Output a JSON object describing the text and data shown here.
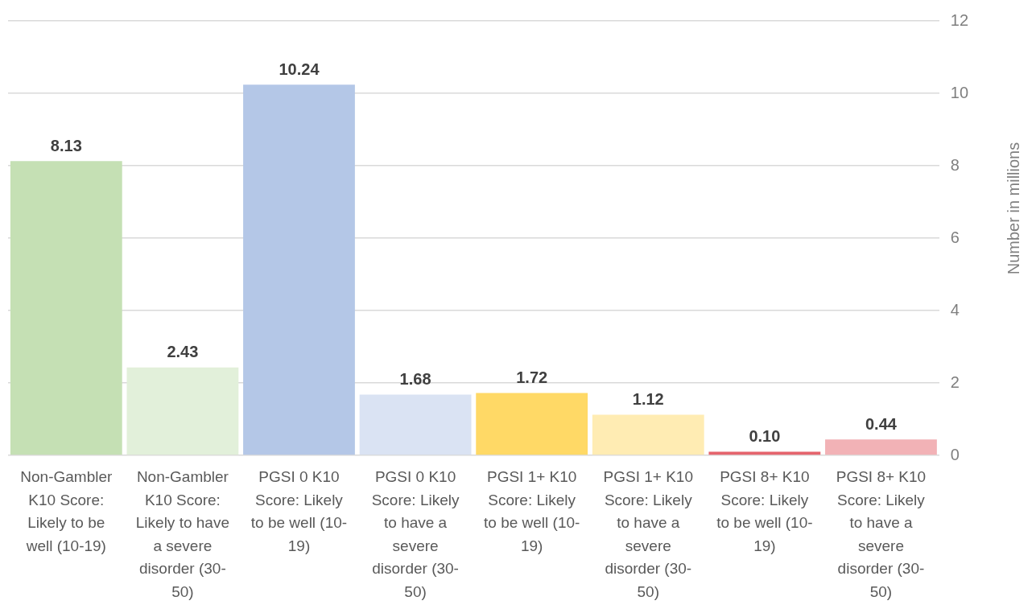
{
  "chart_data": {
    "type": "bar",
    "categories": [
      "Non-Gambler K10 Score: Likely to be well (10-19)",
      "Non-Gambler K10 Score: Likely to have a severe disorder (30-50)",
      "PGSI 0 K10 Score: Likely to be well (10-19)",
      "PGSI 0 K10 Score: Likely to have a severe disorder (30-50)",
      "PGSI 1+ K10 Score: Likely to be well (10-19)",
      "PGSI 1+ K10 Score: Likely to have a severe disorder (30-50)",
      "PGSI 8+ K10 Score: Likely to be well (10-19)",
      "PGSI 8+ K10 Score: Likely to have a severe disorder (30-50)"
    ],
    "values": [
      8.13,
      2.43,
      10.24,
      1.68,
      1.72,
      1.12,
      0.1,
      0.44
    ],
    "value_labels": [
      "8.13",
      "2.43",
      "10.24",
      "1.68",
      "1.72",
      "1.12",
      "0.10",
      "0.44"
    ],
    "colors": [
      "#c5e0b4",
      "#e2f0da",
      "#b4c7e7",
      "#dae3f3",
      "#ffd966",
      "#ffecb3",
      "#e5646d",
      "#f2b2b6"
    ],
    "ylabel": "Number in millions",
    "ylim": [
      0,
      12
    ],
    "yticks": [
      0,
      2,
      4,
      6,
      8,
      10,
      12
    ],
    "grid": "y"
  }
}
